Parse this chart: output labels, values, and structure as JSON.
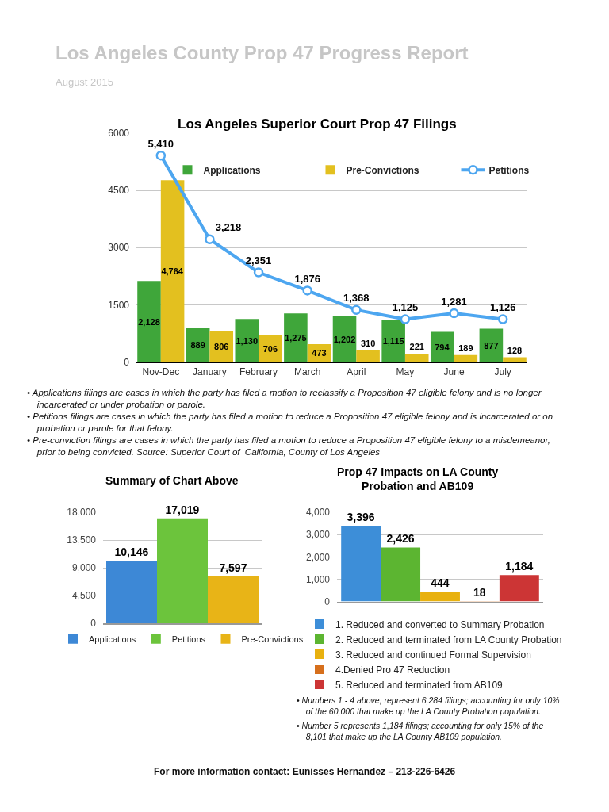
{
  "chart_data": [
    {
      "type": "bar",
      "title": "Los Angeles Superior Court Prop 47 Filings",
      "categories": [
        "Nov-Dec",
        "January",
        "February",
        "March",
        "April",
        "May",
        "June",
        "July"
      ],
      "series": [
        {
          "name": "Applications",
          "color": "#3fa63a",
          "values": [
            2128,
            889,
            1130,
            1275,
            1202,
            1115,
            794,
            877
          ],
          "value_labels": [
            "2,128",
            "889",
            "1,130",
            "1,275",
            "1,202",
            "1,115",
            "794",
            "877"
          ]
        },
        {
          "name": "Pre-Convictions",
          "color": "#e3c01f",
          "values": [
            4764,
            806,
            706,
            473,
            310,
            221,
            189,
            128
          ],
          "value_labels": [
            "4,764",
            "806",
            "706",
            "473",
            "310",
            "221",
            "189",
            "128"
          ]
        },
        {
          "name": "Petitions",
          "type": "line",
          "color": "#4da6f0",
          "values": [
            5410,
            3218,
            2351,
            1876,
            1368,
            1125,
            1281,
            1126
          ],
          "value_labels": [
            "5,410",
            "3,218",
            "2,351",
            "1,876",
            "1,368",
            "1,125",
            "1,281",
            "1,126"
          ]
        }
      ],
      "ylim": [
        0,
        6000
      ],
      "yticks": [
        0,
        1500,
        3000,
        4500,
        6000
      ],
      "grid": "y",
      "legend": "top",
      "marker": "circle",
      "annotations": [
        "Los Angeles County Prop 47 Progress Report",
        "August 2015",
        "• Applications filings are cases in which the party has filed a motion to reclassify a Proposition 47 eligible felony and is no longer incarcerated or under probation or parole.",
        "• Petitions filings are cases in which the party has filed a motion to reduce a Proposition 47 eligible felony and is incarcerated or on probation or parole for that felony.",
        "• Pre-conviction filings are cases in which the party has filed a motion to reduce a Proposition 47 eligible felony to a misdemeanor, prior to being convicted. Source: Superior Court of  California, County of Los Angeles"
      ]
    },
    {
      "type": "bar",
      "title": "Summary of Chart Above",
      "categories": [
        null
      ],
      "series": [
        {
          "name": "Applications",
          "color": "#3d88d6",
          "values": [
            10146
          ],
          "value_labels": [
            "10,146"
          ]
        },
        {
          "name": "Petitions",
          "color": "#6cc43c",
          "values": [
            17019
          ],
          "value_labels": [
            "17,019"
          ]
        },
        {
          "name": "Pre-Convictions",
          "color": "#e8b417",
          "values": [
            7597
          ],
          "value_labels": [
            "7,597"
          ]
        }
      ],
      "ylim": [
        0,
        18000
      ],
      "yticks": [
        0,
        {
          "value": 4500,
          "label": "4,500"
        },
        {
          "value": 9000,
          "label": "9,000"
        },
        {
          "value": 13500,
          "label": "13,500"
        },
        {
          "value": 18000,
          "label": "18,000"
        }
      ],
      "grid": "y",
      "legend": "bottom",
      "tick_labels": "y"
    },
    {
      "type": "bar",
      "title": "Prop 47 Impacts on LA County Probation and AB109",
      "categories": [
        null
      ],
      "series": [
        {
          "name": "1. Reduced and converted to Summary Probation",
          "color": "#3d8ed8",
          "values": [
            3396
          ],
          "value_labels": [
            "3,396"
          ]
        },
        {
          "name": "2. Reduced and terminated from LA County Probation",
          "color": "#5cb531",
          "values": [
            2426
          ],
          "value_labels": [
            "2,426"
          ]
        },
        {
          "name": "3. Reduced and continued Formal Supervision",
          "color": "#e8b10f",
          "values": [
            444
          ],
          "value_labels": [
            "444"
          ]
        },
        {
          "name": "4.Denied Pro 47 Reduction",
          "color": "#d66f1c",
          "values": [
            18
          ],
          "value_labels": [
            "18"
          ]
        },
        {
          "name": "5. Reduced and terminated from AB109",
          "color": "#cc3535",
          "values": [
            1184
          ],
          "value_labels": [
            "1,184"
          ]
        }
      ],
      "ylim": [
        0,
        4000
      ],
      "yticks": [
        0,
        {
          "value": 1000,
          "label": "1,000"
        },
        {
          "value": 2000,
          "label": "2,000"
        },
        {
          "value": 3000,
          "label": "3,000"
        },
        {
          "value": 4000,
          "label": "4,000"
        }
      ],
      "grid": "y",
      "legend": "bottom left",
      "tick_labels": "y",
      "annotations": [
        "• Numbers 1 - 4 above, represent 6,284 filings; accounting for only 10% of the 60,000 that make up the LA County Probation population.",
        "• Number 5 represents 1,184 filings; accounting for only 15% of the 8,101 that make up the LA County AB109 population.",
        "For more information contact: Eunisses Hernandez – 213-226-6426"
      ]
    }
  ]
}
